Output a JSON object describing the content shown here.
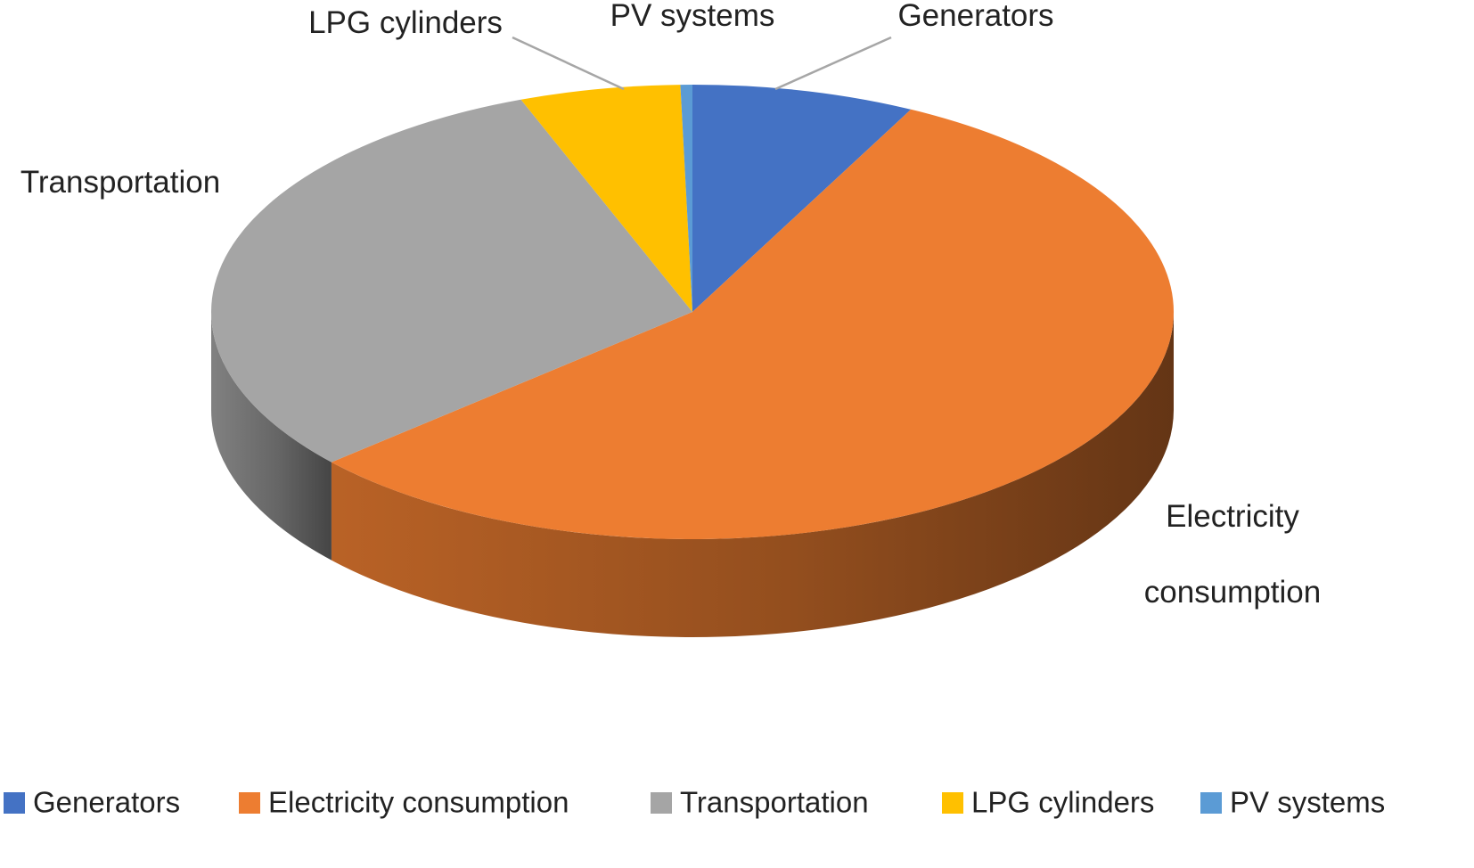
{
  "chart_data": {
    "type": "pie",
    "style": "3d",
    "start_angle_deg": 0,
    "direction": "clockwise",
    "slices": [
      {
        "label": "Generators",
        "value": 7.5,
        "color": "#4472C4",
        "label_display": [
          "Generators"
        ]
      },
      {
        "label": "Electricity consumption",
        "value": 56.0,
        "color": "#ED7D31",
        "label_display": [
          "Electricity",
          "consumption"
        ]
      },
      {
        "label": "Transportation",
        "value": 30.7,
        "color": "#A5A5A5",
        "label_display": [
          "Transportation"
        ]
      },
      {
        "label": "LPG cylinders",
        "value": 5.4,
        "color": "#FFC000",
        "label_display": [
          "LPG cylinders"
        ]
      },
      {
        "label": "PV systems",
        "value": 0.4,
        "color": "#5B9BD5",
        "label_display": [
          "PV systems"
        ]
      }
    ],
    "legend": {
      "position": "bottom",
      "entries": [
        "Generators",
        "Electricity consumption",
        "Transportation",
        "LPG cylinders",
        "PV systems"
      ]
    }
  }
}
